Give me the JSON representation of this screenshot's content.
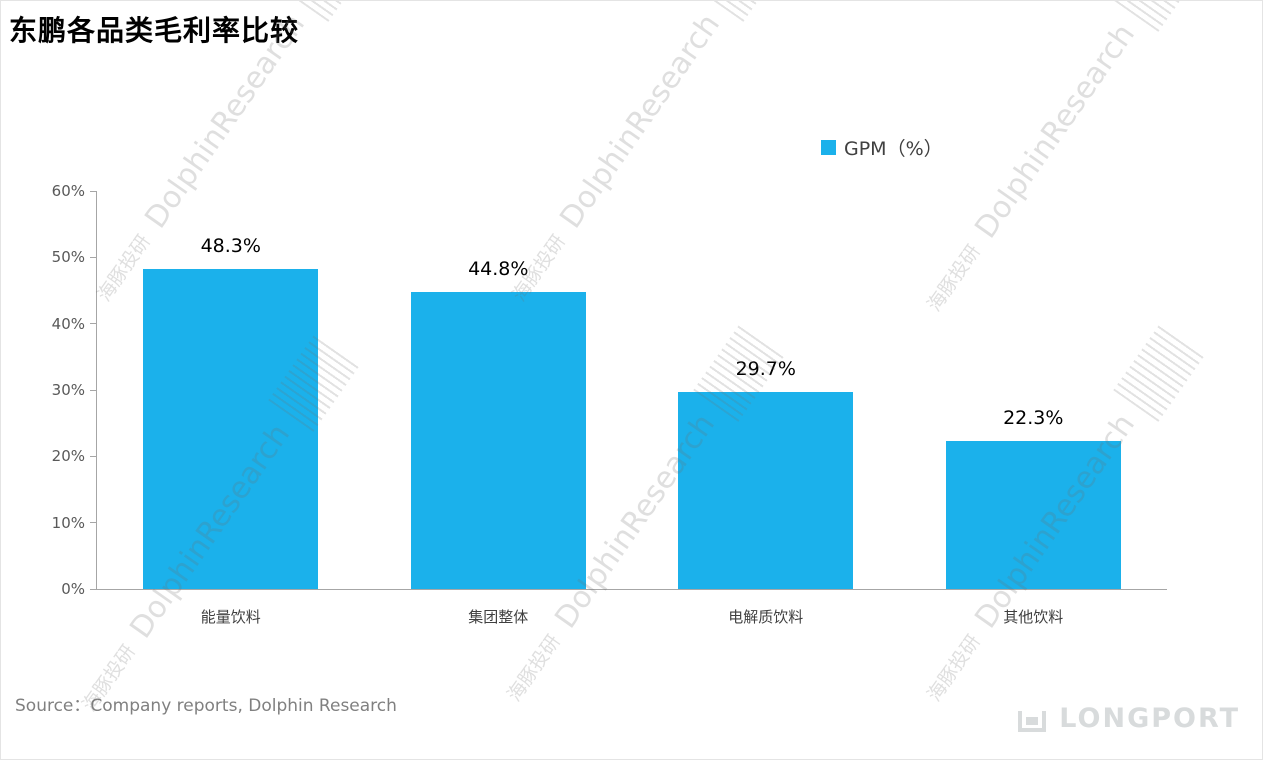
{
  "page": {
    "title": "东鹏各品类毛利率比较",
    "source": "Source：Company reports, Dolphin Research",
    "watermark_cn": "海豚投研",
    "watermark_en": "DolphinResearch",
    "logo_text": "LONGPORT"
  },
  "legend": {
    "label": "GPM（%）",
    "color": "#1BB1EB"
  },
  "chart_data": {
    "type": "bar",
    "title": "东鹏各品类毛利率比较",
    "categories": [
      "能量饮料",
      "集团整体",
      "电解质饮料",
      "其他饮料"
    ],
    "values": [
      48.3,
      44.8,
      29.7,
      22.3
    ],
    "value_labels": [
      "48.3%",
      "44.8%",
      "29.7%",
      "22.3%"
    ],
    "series_name": "GPM（%）",
    "bar_color": "#1BB1EB",
    "ylim": [
      0,
      60
    ],
    "yticks": [
      "60%",
      "50%",
      "40%",
      "30%",
      "20%",
      "10%",
      "0%"
    ],
    "grid": false,
    "legend_position": "top-right"
  }
}
